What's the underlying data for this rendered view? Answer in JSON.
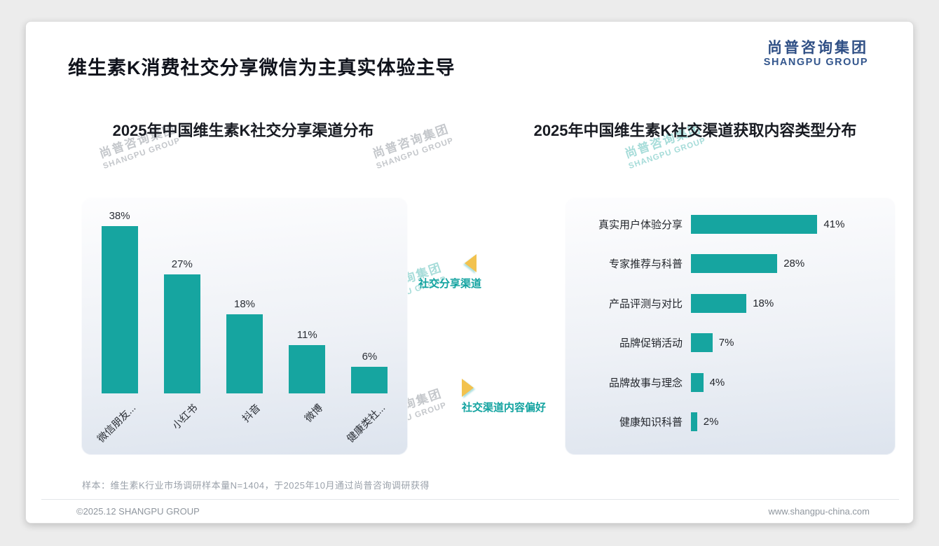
{
  "page": {
    "title": "维生素K消费社交分享微信为主真实体验主导",
    "logo": {
      "cn": "尚普咨询集团",
      "en": "SHANGPU GROUP"
    },
    "watermark": {
      "cn": "尚普咨询集团",
      "en": "SHANGPU GROUP"
    },
    "footnote": "样本：维生素K行业市场调研样本量N=1404，于2025年10月通过尚普咨询调研获得",
    "footer_left": "©2025.12 SHANGPU GROUP",
    "footer_right": "www.shangpu-china.com"
  },
  "annotations": {
    "share_channel_label": "社交分享渠道",
    "content_pref_label": "社交渠道内容偏好"
  },
  "colors": {
    "bar_teal": "#16a5a0",
    "accent_teal": "#12a3a0",
    "logo_navy": "#2f4f85",
    "arrow_yellow": "#f2c24e"
  },
  "chart_data": [
    {
      "type": "bar",
      "orientation": "vertical",
      "title": "2025年中国维生素K社交分享渠道分布",
      "categories": [
        "微信朋友...",
        "小红书",
        "抖音",
        "微博",
        "健康类社..."
      ],
      "values": [
        38,
        27,
        18,
        11,
        6
      ],
      "unit": "%",
      "ylim": [
        0,
        40
      ],
      "grid": false,
      "value_labels": true
    },
    {
      "type": "bar",
      "orientation": "horizontal",
      "title": "2025年中国维生素K社交渠道获取内容类型分布",
      "categories": [
        "真实用户体验分享",
        "专家推荐与科普",
        "产品评测与对比",
        "品牌促销活动",
        "品牌故事与理念",
        "健康知识科普"
      ],
      "values": [
        41,
        28,
        18,
        7,
        4,
        2
      ],
      "unit": "%",
      "xlim": [
        0,
        45
      ],
      "grid": false,
      "value_labels": true
    }
  ]
}
